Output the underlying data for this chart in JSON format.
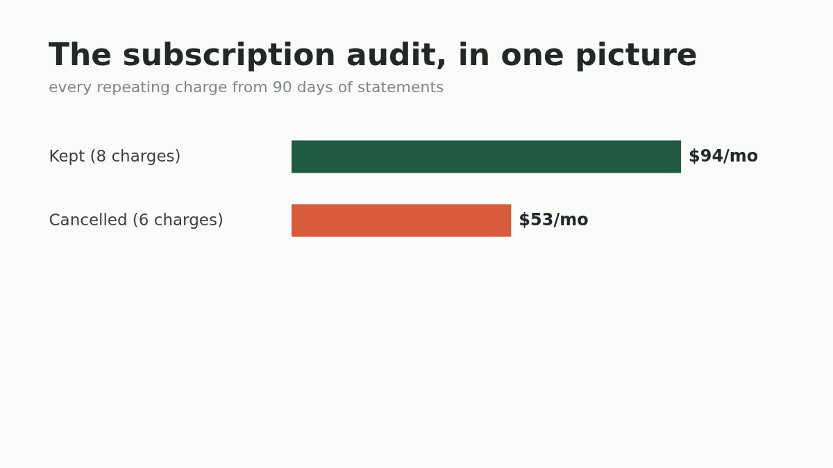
{
  "chart_data": {
    "type": "bar",
    "orientation": "horizontal",
    "title": "The subscription audit, in one picture",
    "subtitle": "every repeating charge from 90 days of statements",
    "categories": [
      "Kept (8 charges)",
      "Cancelled (6 charges)"
    ],
    "values": [
      94,
      53
    ],
    "colors": [
      "#1f5b40",
      "#d85b3d"
    ],
    "value_labels": [
      "$94/mo",
      "$53/mo"
    ]
  }
}
